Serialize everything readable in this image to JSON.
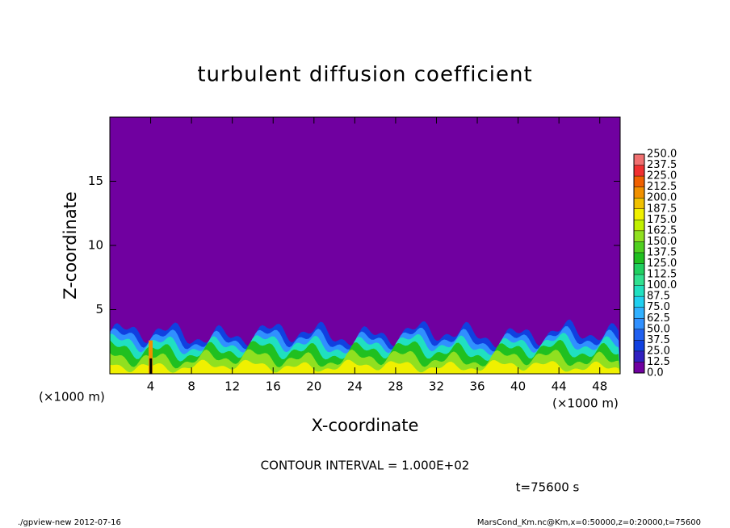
{
  "chart_data": {
    "type": "contour",
    "title": "turbulent diffusion coefficient",
    "x_label": "X-coordinate",
    "y_label": "Z-coordinate",
    "x_unit": "(×1000 m)",
    "xlim": [
      0,
      50
    ],
    "xticks": [
      4,
      8,
      12,
      16,
      20,
      24,
      28,
      32,
      36,
      40,
      44,
      48
    ],
    "ylim": [
      0,
      20
    ],
    "yticks": [
      5,
      10,
      15
    ],
    "levels": [
      {
        "value": 0,
        "label": "0.0"
      },
      {
        "value": 12.5,
        "label": "12.5"
      },
      {
        "value": 25,
        "label": "25.0"
      },
      {
        "value": 37.5,
        "label": "37.5"
      },
      {
        "value": 50,
        "label": "50.0"
      },
      {
        "value": 62.5,
        "label": "62.5"
      },
      {
        "value": 75,
        "label": "75.0"
      },
      {
        "value": 87.5,
        "label": "87.5"
      },
      {
        "value": 100,
        "label": "100.0"
      },
      {
        "value": 112.5,
        "label": "112.5"
      },
      {
        "value": 125,
        "label": "125.0"
      },
      {
        "value": 137.5,
        "label": "137.5"
      },
      {
        "value": 150,
        "label": "150.0"
      },
      {
        "value": 162.5,
        "label": "162.5"
      },
      {
        "value": 175,
        "label": "175.0"
      },
      {
        "value": 187.5,
        "label": "187.5"
      },
      {
        "value": 200,
        "label": "200.0"
      },
      {
        "value": 212.5,
        "label": "212.5"
      },
      {
        "value": 225,
        "label": "225.0"
      },
      {
        "value": 237.5,
        "label": "237.5"
      },
      {
        "value": 250,
        "label": "250.0"
      }
    ],
    "colors": [
      "#7000a0",
      "#3020c0",
      "#1040e0",
      "#2060f0",
      "#3090ff",
      "#30b0ff",
      "#20d0f0",
      "#20e0c0",
      "#30e090",
      "#20d060",
      "#20c020",
      "#50d020",
      "#90e020",
      "#c0f000",
      "#f0f000",
      "#f0c000",
      "#f09000",
      "#f06000",
      "#f03030",
      "#f07070"
    ],
    "contour_note": "CONTOUR INTERVAL = 1.000E+02",
    "time_label": "t=75600 s",
    "footer_left": "./gpview-new  2012-07-16",
    "footer_right": "MarsCond_Km.nc@Km,x=0:50000,z=0:20000,t=75600"
  }
}
